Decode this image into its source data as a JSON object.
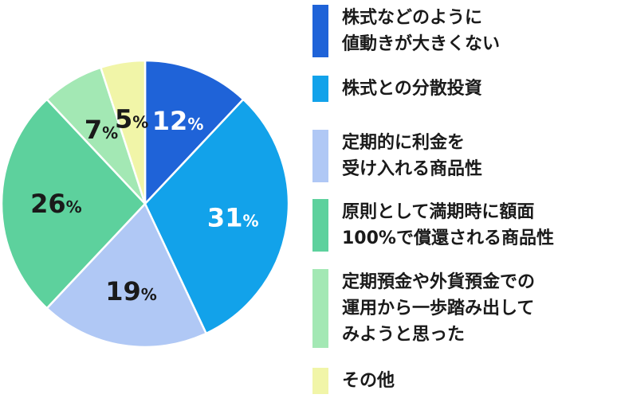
{
  "chart_data": {
    "type": "pie",
    "start_angle_deg": 0,
    "direction": "clockwise",
    "slices": [
      {
        "label_lines": [
          "株式などのように",
          "値動きが大きくない"
        ],
        "value": 12,
        "display": "12",
        "unit": "%",
        "color": "#1f63d8",
        "text_color": "#ffffff"
      },
      {
        "label_lines": [
          "株式との分散投資"
        ],
        "value": 31,
        "display": "31",
        "unit": "%",
        "color": "#12a2ea",
        "text_color": "#ffffff"
      },
      {
        "label_lines": [
          "定期的に利金を",
          "受け入れる商品性"
        ],
        "value": 19,
        "display": "19",
        "unit": "%",
        "color": "#b0c8f5",
        "text_color": "#1a1a1a"
      },
      {
        "label_lines": [
          "原則として満期時に額面",
          "100%で償還される商品性"
        ],
        "value": 26,
        "display": "26",
        "unit": "%",
        "color": "#5dd19d",
        "text_color": "#1a1a1a"
      },
      {
        "label_lines": [
          "定期預金や外貨預金での",
          "運用から一歩踏み出して",
          "みようと思った"
        ],
        "value": 7,
        "display": "7",
        "unit": "%",
        "color": "#a3e8b4",
        "text_color": "#1a1a1a"
      },
      {
        "label_lines": [
          "その他"
        ],
        "value": 5,
        "display": "5",
        "unit": "%",
        "color": "#f1f5a8",
        "text_color": "#1a1a1a"
      }
    ],
    "legend_position": "right"
  }
}
